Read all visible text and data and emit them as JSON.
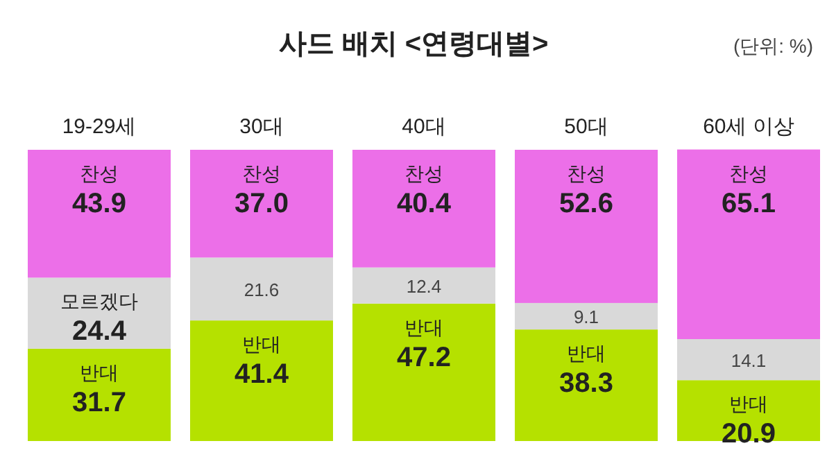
{
  "chart_data": {
    "type": "bar",
    "stacked": true,
    "title": "사드 배치 <연령대별>",
    "annotations": [
      "(단위: %)"
    ],
    "categories": [
      "19-29세",
      "30대",
      "40대",
      "50대",
      "60세 이상"
    ],
    "series": [
      {
        "color": "#b5e100",
        "values": [
          31.7,
          41.4,
          47.2,
          38.3,
          20.9
        ],
        "value_labels": [
          "반대\n31.7",
          "반대\n41.4",
          "반대\n47.2",
          "반대\n38.3",
          "반대\n20.9"
        ]
      },
      {
        "color": "#d9d9d9",
        "values": [
          24.4,
          21.6,
          12.4,
          9.1,
          14.1
        ],
        "value_labels": [
          "모르겠다\n24.4",
          "21.6",
          "12.4",
          "9.1",
          "14.1"
        ]
      },
      {
        "color": "#ec6fe8",
        "values": [
          43.9,
          37.0,
          40.4,
          52.6,
          65.1
        ],
        "value_labels": [
          "찬성\n43.9",
          "찬성\n37.0",
          "찬성\n40.4",
          "찬성\n52.6",
          "찬성\n65.1"
        ]
      }
    ]
  }
}
